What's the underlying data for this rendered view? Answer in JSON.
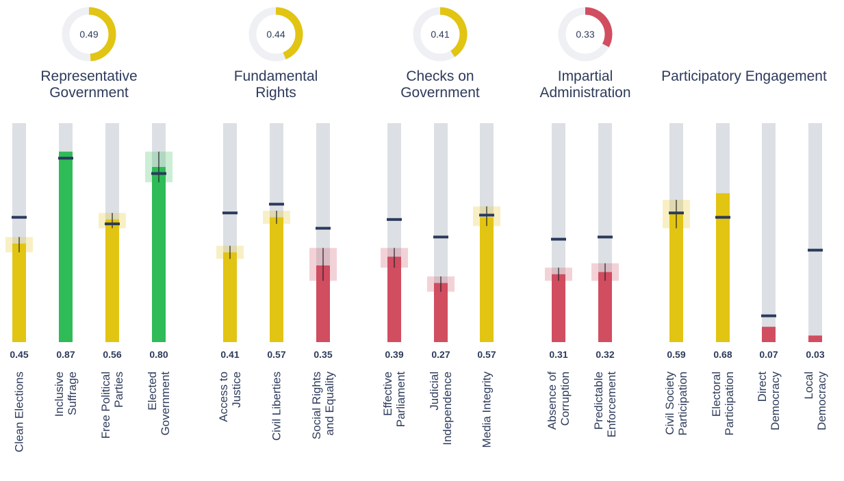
{
  "chart_data": [
    {
      "type": "bar",
      "title": "Representative\nGovernment",
      "score": 0.49,
      "score_color": "#e2c413",
      "categories": [
        "Clean Elections",
        "Inclusive\nSuffrage",
        "Free Political\nParties",
        "Elected\nGovernment"
      ],
      "values": [
        0.45,
        0.87,
        0.56,
        0.8
      ],
      "value_labels": [
        "0.45",
        "0.87",
        "0.56",
        "0.80"
      ],
      "colors": [
        "#e2c413",
        "#2fbb57",
        "#e2c413",
        "#2fbb57"
      ],
      "reference": [
        0.57,
        0.84,
        0.54,
        0.77
      ],
      "intervals": [
        [
          0.41,
          0.48
        ],
        null,
        [
          0.52,
          0.59
        ],
        [
          0.73,
          0.87
        ]
      ],
      "ylim": [
        0,
        1
      ]
    },
    {
      "type": "bar",
      "title": "Fundamental\nRights",
      "score": 0.44,
      "score_color": "#e2c413",
      "categories": [
        "Access to\nJustice",
        "Civil Liberties",
        "Social Rights\nand Equality"
      ],
      "values": [
        0.41,
        0.57,
        0.35
      ],
      "colors": [
        "#e2c413",
        "#e2c413",
        "#d14d60"
      ],
      "reference": [
        0.59,
        0.63,
        0.52
      ],
      "intervals": [
        [
          0.38,
          0.44
        ],
        [
          0.54,
          0.6
        ],
        [
          0.28,
          0.43
        ]
      ],
      "ylim": [
        0,
        1
      ]
    },
    {
      "type": "bar",
      "title": "Checks on\nGovernment",
      "score": 0.41,
      "score_color": "#e2c413",
      "categories": [
        "Effective\nParliament",
        "Judicial\nIndependence",
        "Media Integrity"
      ],
      "values": [
        0.39,
        0.27,
        0.57
      ],
      "colors": [
        "#d14d60",
        "#d14d60",
        "#e2c413"
      ],
      "reference": [
        0.56,
        0.48,
        0.58
      ],
      "intervals": [
        [
          0.34,
          0.43
        ],
        [
          0.23,
          0.3
        ],
        [
          0.53,
          0.62
        ]
      ],
      "ylim": [
        0,
        1
      ]
    },
    {
      "type": "bar",
      "title": "Impartial\nAdministration",
      "score": 0.33,
      "score_color": "#d14d60",
      "categories": [
        "Absence of\nCorruption",
        "Predictable\nEnforcement"
      ],
      "values": [
        0.31,
        0.32
      ],
      "colors": [
        "#d14d60",
        "#d14d60"
      ],
      "reference": [
        0.47,
        0.48
      ],
      "intervals": [
        [
          0.28,
          0.34
        ],
        [
          0.28,
          0.36
        ]
      ],
      "ylim": [
        0,
        1
      ]
    },
    {
      "type": "bar",
      "title": "Participatory Engagement",
      "categories": [
        "Civil Society\nParticipation",
        "Electoral\nParticipation",
        "Direct\nDemocracy",
        "Local\nDemocracy"
      ],
      "values": [
        0.59,
        0.68,
        0.07,
        0.03
      ],
      "colors": [
        "#e2c413",
        "#e2c413",
        "#d14d60",
        "#d14d60"
      ],
      "reference": [
        0.59,
        0.57,
        0.12,
        0.42
      ],
      "intervals": [
        [
          0.52,
          0.65
        ],
        null,
        null,
        null
      ],
      "ylim": [
        0,
        1
      ]
    }
  ]
}
